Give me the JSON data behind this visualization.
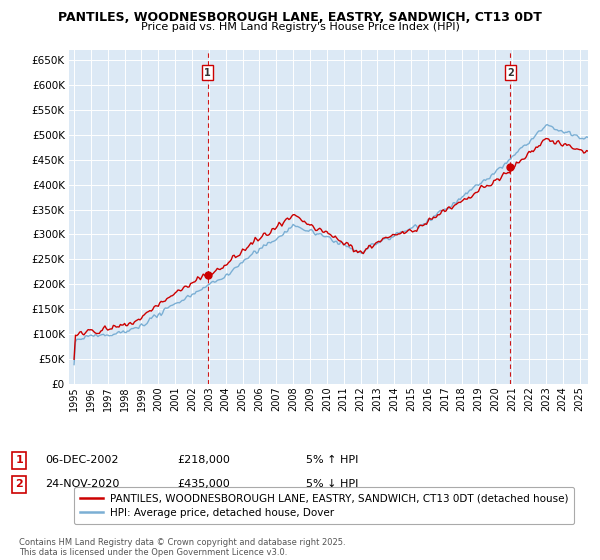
{
  "title": "PANTILES, WOODNESBOROUGH LANE, EASTRY, SANDWICH, CT13 0DT",
  "subtitle": "Price paid vs. HM Land Registry's House Price Index (HPI)",
  "ylabel_ticks": [
    0,
    50000,
    100000,
    150000,
    200000,
    250000,
    300000,
    350000,
    400000,
    450000,
    500000,
    550000,
    600000,
    650000
  ],
  "ylim": [
    0,
    670000
  ],
  "xlim_start": 1994.7,
  "xlim_end": 2025.5,
  "legend_line1": "PANTILES, WOODNESBOROUGH LANE, EASTRY, SANDWICH, CT13 0DT (detached house)",
  "legend_line2": "HPI: Average price, detached house, Dover",
  "sale1_date": 2002.92,
  "sale1_label": "1",
  "sale1_price": 218000,
  "sale2_date": 2020.9,
  "sale2_label": "2",
  "sale2_price": 435000,
  "footer": "Contains HM Land Registry data © Crown copyright and database right 2025.\nThis data is licensed under the Open Government Licence v3.0.",
  "line_color_price": "#cc0000",
  "line_color_hpi": "#7bafd4",
  "vline_color": "#cc0000",
  "background_color": "#ffffff",
  "plot_bg_color": "#dce9f5",
  "grid_color": "#ffffff"
}
